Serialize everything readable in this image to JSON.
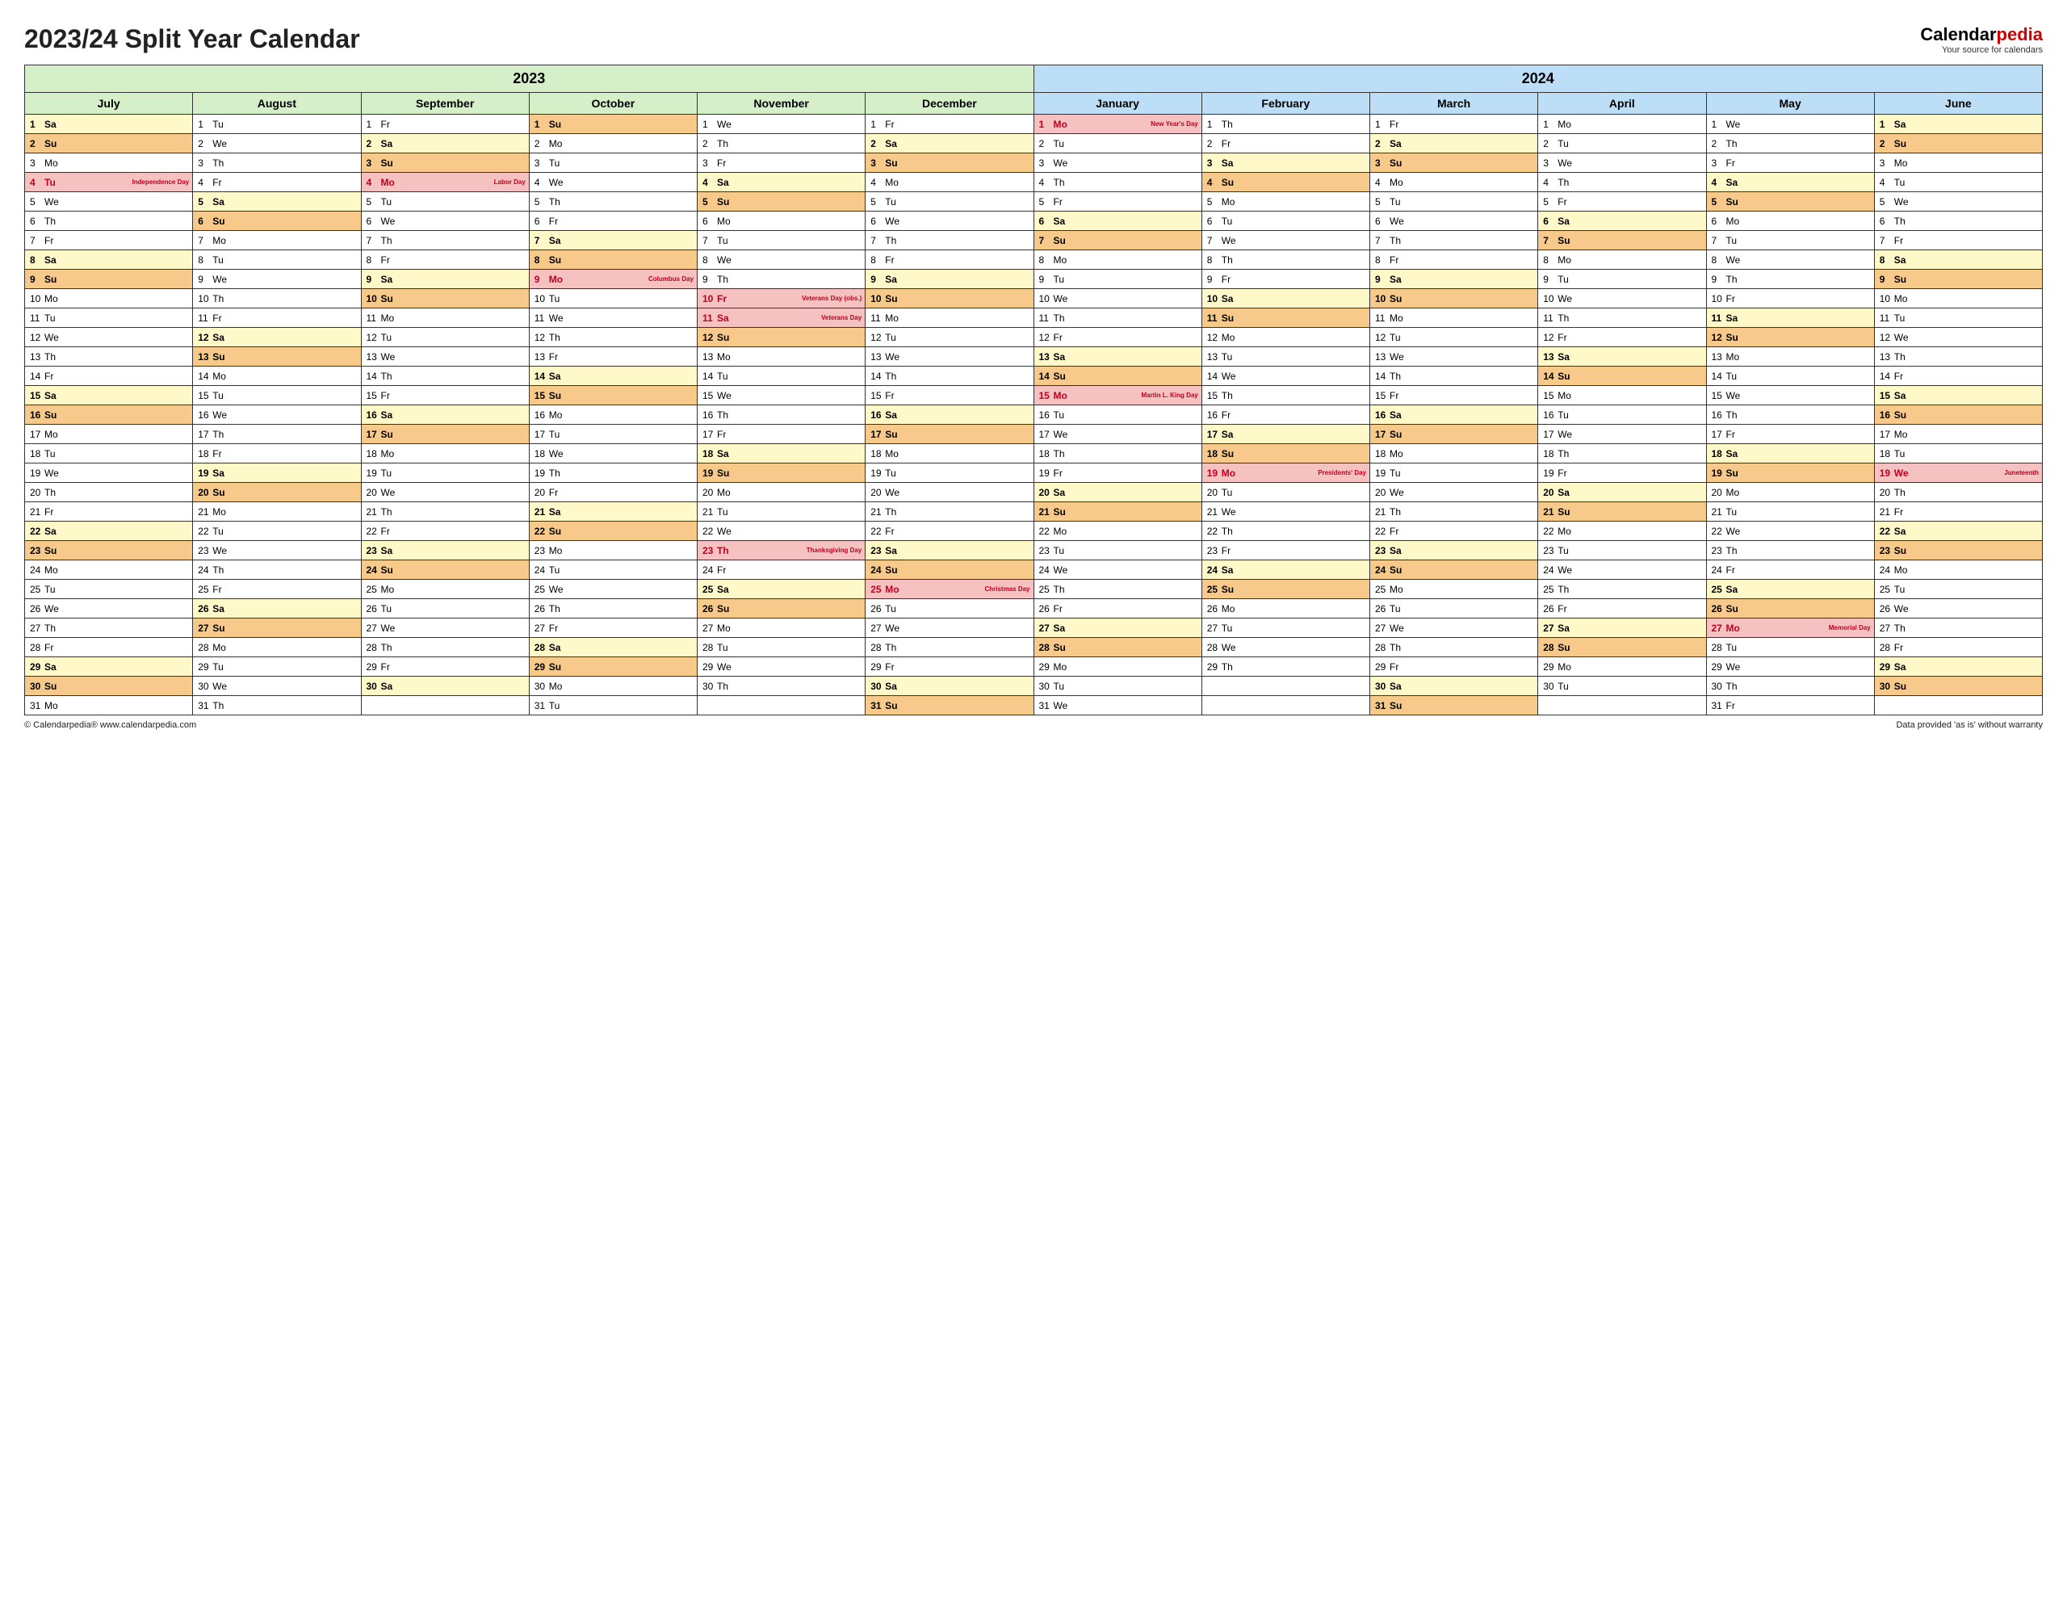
{
  "title": "2023/24 Split Year Calendar",
  "brand": {
    "pre": "Calendar",
    "post": "pedia",
    "tagline": "Your source for calendars"
  },
  "footer": {
    "left": "© Calendarpedia®   www.calendarpedia.com",
    "right": "Data provided 'as is' without warranty"
  },
  "colors": {
    "year2023": "#d5f0c8",
    "year2024": "#bcdff7",
    "saturday": "#fff9c9",
    "sunday": "#f7c98a",
    "holiday": "#f5c1c1",
    "holidayText": "#c00020",
    "border": "#333333"
  },
  "yearHeaders": [
    {
      "label": "2023",
      "span": 6,
      "class": "y2023"
    },
    {
      "label": "2024",
      "span": 6,
      "class": "y2024"
    }
  ],
  "months": [
    {
      "name": "July",
      "class": "y2023",
      "year": 2023,
      "month": 7,
      "days": 31,
      "startDow": 6
    },
    {
      "name": "August",
      "class": "y2023",
      "year": 2023,
      "month": 8,
      "days": 31,
      "startDow": 2
    },
    {
      "name": "September",
      "class": "y2023",
      "year": 2023,
      "month": 9,
      "days": 30,
      "startDow": 5
    },
    {
      "name": "October",
      "class": "y2023",
      "year": 2023,
      "month": 10,
      "days": 31,
      "startDow": 0
    },
    {
      "name": "November",
      "class": "y2023",
      "year": 2023,
      "month": 11,
      "days": 30,
      "startDow": 3
    },
    {
      "name": "December",
      "class": "y2023",
      "year": 2023,
      "month": 12,
      "days": 31,
      "startDow": 5
    },
    {
      "name": "January",
      "class": "y2024",
      "year": 2024,
      "month": 1,
      "days": 31,
      "startDow": 1
    },
    {
      "name": "February",
      "class": "y2024",
      "year": 2024,
      "month": 2,
      "days": 29,
      "startDow": 4
    },
    {
      "name": "March",
      "class": "y2024",
      "year": 2024,
      "month": 3,
      "days": 31,
      "startDow": 5
    },
    {
      "name": "April",
      "class": "y2024",
      "year": 2024,
      "month": 4,
      "days": 30,
      "startDow": 1
    },
    {
      "name": "May",
      "class": "y2024",
      "year": 2024,
      "month": 5,
      "days": 31,
      "startDow": 3
    },
    {
      "name": "June",
      "class": "y2024",
      "year": 2024,
      "month": 6,
      "days": 30,
      "startDow": 6
    }
  ],
  "dowAbbr": [
    "Su",
    "Mo",
    "Tu",
    "We",
    "Th",
    "Fr",
    "Sa"
  ],
  "holidays": {
    "2023-07-04": "Independence Day",
    "2023-09-04": "Labor Day",
    "2023-10-09": "Columbus Day",
    "2023-11-10": "Veterans Day (obs.)",
    "2023-11-11": "Veterans Day",
    "2023-11-23": "Thanksgiving Day",
    "2023-12-25": "Christmas Day",
    "2024-01-01": "New Year's Day",
    "2024-01-15": "Martin L. King Day",
    "2024-02-19": "Presidents' Day",
    "2024-05-27": "Memorial Day",
    "2024-06-19": "Juneteenth"
  },
  "maxRows": 31
}
